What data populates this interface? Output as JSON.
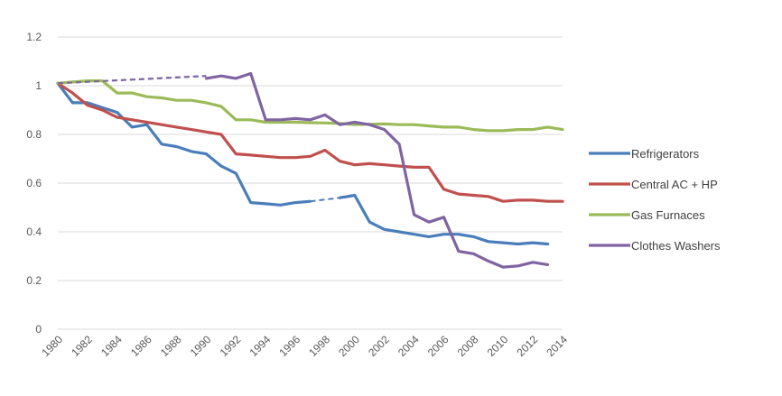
{
  "chart_data": {
    "type": "line",
    "title": "",
    "xlabel": "",
    "ylabel": "",
    "x": [
      1980,
      1981,
      1982,
      1983,
      1984,
      1985,
      1986,
      1987,
      1988,
      1989,
      1990,
      1991,
      1992,
      1993,
      1994,
      1995,
      1996,
      1997,
      1998,
      1999,
      2000,
      2001,
      2002,
      2003,
      2004,
      2005,
      2006,
      2007,
      2008,
      2009,
      2010,
      2011,
      2012,
      2013,
      2014
    ],
    "xlim": [
      1980,
      2014
    ],
    "ylim": [
      0,
      1.2
    ],
    "y_ticks": [
      "0",
      "0.2",
      "0.4",
      "0.6",
      "0.8",
      "1",
      "1.2"
    ],
    "x_ticks": [
      "1980",
      "1982",
      "1984",
      "1986",
      "1988",
      "1990",
      "1992",
      "1994",
      "1996",
      "1998",
      "2000",
      "2002",
      "2004",
      "2006",
      "2008",
      "2010",
      "2012",
      "2014"
    ],
    "grid": true,
    "legend_position": "right",
    "series": [
      {
        "name": "Refrigerators",
        "color": "#4a7ebb",
        "values": [
          1.01,
          0.93,
          0.93,
          0.91,
          0.89,
          0.83,
          0.84,
          0.76,
          0.75,
          0.73,
          0.72,
          0.67,
          0.64,
          0.52,
          0.515,
          0.51,
          0.52,
          0.525,
          null,
          0.54,
          0.55,
          0.44,
          0.41,
          0.4,
          0.39,
          0.38,
          0.39,
          0.39,
          0.38,
          0.36,
          0.355,
          0.35,
          0.355,
          0.35,
          null
        ],
        "dashed_gaps": [
          [
            1980,
            1.01,
            1990,
            1.04
          ],
          [
            1997,
            0.525,
            1999,
            0.54
          ]
        ]
      },
      {
        "name": "Central AC + HP",
        "color": "#c0504d",
        "values": [
          1.01,
          0.97,
          0.92,
          0.9,
          0.87,
          0.86,
          0.85,
          0.84,
          0.83,
          0.82,
          0.81,
          0.8,
          0.72,
          0.715,
          0.71,
          0.705,
          0.705,
          0.71,
          0.735,
          0.69,
          0.675,
          0.68,
          0.675,
          0.67,
          0.665,
          0.665,
          0.575,
          0.555,
          0.55,
          0.545,
          0.525,
          0.53,
          0.53,
          0.525,
          0.525
        ],
        "dashed_gaps": []
      },
      {
        "name": "Gas Furnaces",
        "color": "#9bbb59",
        "values": [
          1.01,
          1.015,
          1.02,
          1.02,
          0.97,
          0.97,
          0.955,
          0.95,
          0.94,
          0.94,
          0.93,
          0.915,
          0.86,
          0.86,
          0.85,
          0.85,
          0.85,
          0.848,
          0.847,
          0.845,
          0.84,
          0.842,
          0.843,
          0.84,
          0.84,
          0.835,
          0.83,
          0.83,
          0.82,
          0.815,
          0.815,
          0.82,
          0.82,
          0.83,
          0.82
        ],
        "dashed_gaps": []
      },
      {
        "name": "Clothes Washers",
        "color": "#8064a2",
        "values": [
          null,
          null,
          null,
          null,
          null,
          null,
          null,
          null,
          null,
          null,
          1.03,
          1.04,
          1.03,
          1.05,
          0.86,
          0.86,
          0.865,
          0.86,
          0.88,
          0.84,
          0.85,
          0.84,
          0.82,
          0.76,
          0.47,
          0.44,
          0.46,
          0.32,
          0.31,
          0.28,
          0.255,
          0.26,
          0.275,
          0.265,
          null
        ],
        "dashed_gaps": [
          [
            1980,
            1.01,
            1990,
            1.04
          ]
        ]
      }
    ]
  }
}
